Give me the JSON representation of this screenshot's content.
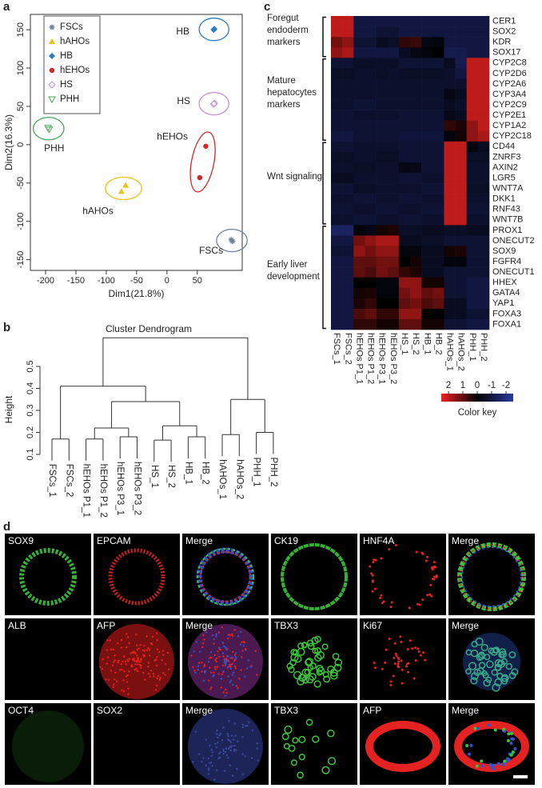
{
  "panel_labels": [
    "a",
    "b",
    "c",
    "d"
  ],
  "chart_data": [
    {
      "type": "scatter",
      "xlabel": "Dim1(21.8%)",
      "ylabel": "Dim2(16.3%)",
      "xlim": [
        -225,
        124
      ],
      "ylim": [
        -164,
        170
      ],
      "xticks": [
        -200,
        -150,
        -100,
        -50,
        0,
        50
      ],
      "yticks": [
        -150,
        -100,
        -50,
        0,
        50,
        100,
        150
      ],
      "legend": "upper left",
      "series": [
        {
          "name": "FSCs",
          "color": "#6e8096",
          "marker": "asterisk",
          "x": [
            106,
            108
          ],
          "y": [
            -124,
            -126
          ]
        },
        {
          "name": "hAHOs",
          "color": "#e8c21a",
          "marker": "triangle",
          "x": [
            -68,
            -75
          ],
          "y": [
            -53,
            -61
          ]
        },
        {
          "name": "HB",
          "color": "#2e7bbf",
          "marker": "diamond",
          "x": [
            77,
            78
          ],
          "y": [
            150,
            151
          ]
        },
        {
          "name": "hEHOs",
          "color": "#d62728",
          "marker": "circle",
          "x": [
            64,
            54
          ],
          "y": [
            -2,
            -43
          ]
        },
        {
          "name": "HS",
          "color": "#c490d1",
          "marker": "diamond-open",
          "x": [
            77,
            78
          ],
          "y": [
            53,
            54
          ]
        },
        {
          "name": "PHH",
          "color": "#4aa55a",
          "marker": "triangle-down-open",
          "x": [
            -196,
            -194
          ],
          "y": [
            22,
            20
          ]
        }
      ]
    },
    {
      "type": "dendrogram",
      "title": "Cluster Dendrogram",
      "ylabel": "Height",
      "ylim": [
        0.1,
        0.5
      ],
      "yticks": [
        0.1,
        0.2,
        0.3,
        0.4,
        0.5
      ],
      "tree": {
        "height": 0.63,
        "children": [
          {
            "height": 0.41,
            "children": [
              {
                "height": 0.17,
                "children": [
                  "FSCs_1",
                  "FSCs_2"
                ]
              },
              {
                "height": 0.34,
                "children": [
                  {
                    "height": 0.22,
                    "children": [
                      {
                        "height": 0.17,
                        "children": [
                          "hEHOs P1_1",
                          "hEHOs P1_2"
                        ]
                      },
                      {
                        "height": 0.18,
                        "children": [
                          "hEHOs P3_1",
                          "hEHOs P3_2"
                        ]
                      }
                    ]
                  },
                  {
                    "height": 0.23,
                    "children": [
                      {
                        "height": 0.165,
                        "children": [
                          "HS_1",
                          "HS_2"
                        ]
                      },
                      {
                        "height": 0.18,
                        "children": [
                          "HB_1",
                          "HB_2"
                        ]
                      }
                    ]
                  }
                ]
              }
            ]
          },
          {
            "height": 0.35,
            "children": [
              {
                "height": 0.19,
                "children": [
                  "hAHOs_1",
                  "hAHOs_2"
                ]
              },
              {
                "height": 0.2,
                "children": [
                  "PHH_1",
                  "PHH_2"
                ]
              }
            ]
          }
        ]
      }
    },
    {
      "type": "heatmap",
      "columns": [
        "FSCs_1",
        "FSCs_2",
        "hEHOs P1_1",
        "hEHOs P1_2",
        "hEHOs P3_1",
        "hEHOs P3_2",
        "HS_1",
        "HS_2",
        "HB_1",
        "HB_2",
        "hAHOs_1",
        "hAHOs_2",
        "PHH_1",
        "PHH_2"
      ],
      "groups": [
        {
          "name": "Foregut endoderm markers",
          "rows": [
            "CER1",
            "SOX2",
            "KDR",
            "SOX17"
          ],
          "values": [
            [
              2,
              2,
              -1,
              -1,
              -1,
              -1,
              -1,
              -1,
              -1,
              -1,
              -1,
              -1,
              -1,
              -1
            ],
            [
              2,
              2,
              -1,
              -1,
              -0.8,
              -0.8,
              -1,
              -1,
              -1,
              -1,
              -1,
              -1,
              -1,
              -1
            ],
            [
              1.2,
              1.5,
              -0.8,
              -0.8,
              -0.5,
              -0.6,
              0.5,
              0.6,
              -0.3,
              -0.2,
              -1,
              -1,
              -1,
              -1
            ],
            [
              1.5,
              1.8,
              -1,
              -1,
              -1,
              -1,
              -0.5,
              -0.3,
              -0.2,
              0,
              -1.2,
              -1.2,
              -1,
              -1
            ]
          ]
        },
        {
          "name": "Mature hepatocytes markers",
          "rows": [
            "CYP2C8",
            "CYP2D6",
            "CYP2A6",
            "CYP3A4",
            "CYP2C9",
            "CYP2E1",
            "CYP1A2",
            "CYP2C18"
          ],
          "values": [
            [
              -0.8,
              -0.8,
              -0.6,
              -0.6,
              -0.6,
              -0.6,
              -0.8,
              -0.8,
              -0.8,
              -0.8,
              -0.5,
              -1.2,
              2,
              2
            ],
            [
              -0.6,
              -0.6,
              -0.7,
              -0.7,
              -0.6,
              -0.7,
              -0.6,
              -0.6,
              -0.6,
              -0.6,
              -0.7,
              -1,
              2,
              2
            ],
            [
              -0.7,
              -0.7,
              -0.7,
              -0.7,
              -0.7,
              -0.7,
              -0.7,
              -0.7,
              -0.7,
              -0.7,
              -0.7,
              -0.7,
              2,
              2
            ],
            [
              -0.7,
              -0.7,
              -0.7,
              -0.7,
              -0.7,
              -0.7,
              -0.7,
              -0.7,
              -0.7,
              -0.7,
              -0.3,
              -0.5,
              2,
              2
            ],
            [
              -0.7,
              -0.7,
              -0.8,
              -0.8,
              -0.7,
              -0.7,
              -0.7,
              -0.7,
              -0.7,
              -0.7,
              -0.5,
              -0.6,
              2,
              2
            ],
            [
              -0.8,
              -0.8,
              -0.7,
              -0.7,
              -0.7,
              -0.7,
              -0.8,
              -0.8,
              -0.8,
              -0.8,
              -0.4,
              -0.5,
              2,
              2
            ],
            [
              -0.8,
              -0.8,
              -0.8,
              -0.8,
              -0.8,
              -0.8,
              -0.8,
              -0.8,
              -0.8,
              -0.8,
              0.5,
              0.3,
              1.5,
              2
            ],
            [
              -1,
              -1,
              -0.8,
              -0.8,
              -0.8,
              -0.8,
              -0.9,
              -0.9,
              -0.9,
              -0.9,
              -0.2,
              0.2,
              1.5,
              1.8
            ]
          ]
        },
        {
          "name": "Wnt signaling",
          "rows": [
            "CD44",
            "ZNRF3",
            "AXIN2",
            "LGR5",
            "WNT7A",
            "DKK1",
            "RNF43",
            "WNT7B"
          ],
          "values": [
            [
              -0.8,
              -0.8,
              -0.7,
              -0.7,
              -0.7,
              -0.7,
              -0.8,
              -0.8,
              -0.8,
              -0.8,
              2,
              2,
              -0.2,
              -0.5
            ],
            [
              -0.6,
              -0.6,
              -0.7,
              -0.7,
              -0.6,
              -0.6,
              -0.8,
              -0.8,
              -0.8,
              -0.8,
              2,
              2,
              -0.6,
              -0.6
            ],
            [
              -0.7,
              -0.7,
              -0.6,
              -0.6,
              -0.7,
              -0.7,
              -0.3,
              -0.4,
              -0.8,
              -0.8,
              2,
              2,
              -0.7,
              -0.7
            ],
            [
              -0.5,
              -0.5,
              -0.7,
              -0.7,
              -0.7,
              -0.7,
              -0.8,
              -0.8,
              -0.7,
              -0.7,
              2,
              2,
              -0.7,
              -0.7
            ],
            [
              -0.8,
              -0.8,
              -0.6,
              -0.6,
              -0.7,
              -0.7,
              -0.7,
              -0.7,
              -0.8,
              -0.8,
              2,
              2,
              -0.6,
              -0.6
            ],
            [
              -0.7,
              -0.7,
              -0.8,
              -0.8,
              -0.7,
              -0.7,
              -0.8,
              -0.8,
              -0.7,
              -0.7,
              2,
              2,
              -0.7,
              -0.7
            ],
            [
              -0.8,
              -0.8,
              -0.7,
              -0.7,
              -0.8,
              -0.8,
              -0.7,
              -0.7,
              -0.8,
              -0.8,
              2,
              2,
              -0.8,
              -0.8
            ],
            [
              -0.7,
              -0.7,
              -0.8,
              -0.8,
              -0.7,
              -0.7,
              -0.8,
              -0.8,
              -0.7,
              -0.7,
              2,
              2,
              -0.7,
              -0.7
            ]
          ]
        },
        {
          "name": "Early liver development",
          "rows": [
            "PROX1",
            "ONECUT2",
            "SOX9",
            "FGFR4",
            "ONECUT1",
            "HHEX",
            "GATA4",
            "YAP1",
            "FOXA3",
            "FOXA1"
          ],
          "values": [
            [
              -1.5,
              -1.5,
              -0.2,
              -0.3,
              0.2,
              0.3,
              -0.6,
              -0.6,
              -0.5,
              -0.5,
              -0.6,
              -0.6,
              -0.5,
              -0.5
            ],
            [
              -1,
              -1,
              1.2,
              1.5,
              1.8,
              1.8,
              -0.5,
              -0.5,
              -0.6,
              -0.6,
              -0.8,
              -0.8,
              -0.8,
              -0.8
            ],
            [
              -0.8,
              -0.8,
              1.5,
              1.2,
              1.5,
              1.5,
              -0.2,
              -0.2,
              -0.5,
              -0.5,
              0.2,
              0.3,
              -0.8,
              -0.8
            ],
            [
              -1,
              -1,
              1,
              1,
              1.2,
              1.2,
              0,
              0.2,
              -0.5,
              -0.5,
              -0.2,
              -0.2,
              -0.8,
              -0.8
            ],
            [
              -1,
              -1,
              1,
              0.8,
              1.2,
              1,
              0.5,
              0.3,
              -0.5,
              -0.5,
              -0.8,
              -0.8,
              -0.8,
              -0.8
            ],
            [
              -1,
              -1,
              0,
              0,
              -0.2,
              -0.2,
              1.5,
              1.5,
              0.2,
              0.2,
              -0.8,
              -0.8,
              -1,
              -1
            ],
            [
              -1,
              -1,
              0.2,
              0.3,
              -0.2,
              -0.2,
              1.2,
              1.5,
              1,
              1.2,
              -0.8,
              -0.8,
              -1,
              -1
            ],
            [
              -1,
              -1,
              0.3,
              0.5,
              0,
              0,
              1,
              1.2,
              0.8,
              1,
              -0.5,
              -0.5,
              -1,
              -1
            ],
            [
              -1,
              -1,
              0.8,
              1,
              0.5,
              0.5,
              1.5,
              1.5,
              0,
              0,
              -0.5,
              -0.5,
              -0.8,
              -0.8
            ],
            [
              -1,
              -1,
              0.5,
              0.5,
              0.2,
              0.2,
              1,
              1,
              0.2,
              0.2,
              -0.8,
              -0.8,
              -1,
              -1
            ]
          ]
        }
      ],
      "color_key": {
        "label": "Color key",
        "lim": [
          2.5,
          -2.5
        ],
        "ticks": [
          2,
          1,
          0,
          -1,
          -2
        ],
        "colors": [
          "#ee2222",
          "#000000",
          "#2b3aa0"
        ]
      }
    }
  ],
  "micrographs": {
    "rows": [
      [
        "SOX9",
        "EPCAM",
        "Merge",
        "CK19",
        "HNF4A",
        "Merge"
      ],
      [
        "ALB",
        "AFP",
        "Merge",
        "TBX3",
        "Ki67",
        "Merge"
      ],
      [
        "OCT4",
        "SOX2",
        "Merge",
        "TBX3",
        "AFP",
        "Merge"
      ]
    ]
  }
}
